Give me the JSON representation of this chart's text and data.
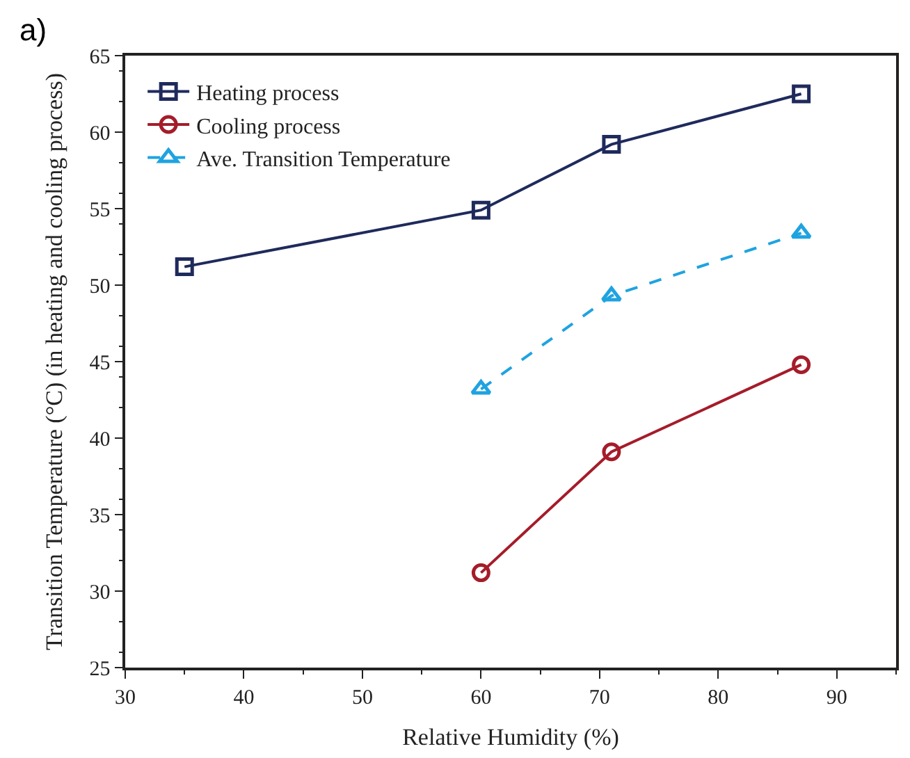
{
  "chart_data": {
    "type": "line",
    "xlabel": "Relative Humidity (%)",
    "ylabel": "Transition Temperature (°C) (in heating and cooling process)",
    "annotations": [
      "a)"
    ],
    "xlim": [
      30,
      95
    ],
    "xticks": [
      30,
      40,
      50,
      60,
      70,
      80,
      90
    ],
    "ylim": [
      25,
      65
    ],
    "yticks": [
      25,
      30,
      35,
      40,
      45,
      50,
      55,
      60,
      65
    ],
    "grid": false,
    "legend": "top left",
    "series": [
      {
        "name": "Heating process",
        "color": "#1f2a5c",
        "x": [
          35,
          60,
          71,
          87
        ],
        "values": [
          51.2,
          54.9,
          59.2,
          62.5
        ],
        "marker": "square",
        "line_style": "solid"
      },
      {
        "name": "Cooling process",
        "color": "#a51c2a",
        "x": [
          60,
          71,
          87
        ],
        "values": [
          31.2,
          39.1,
          44.8
        ],
        "marker": "circle",
        "line_style": "solid"
      },
      {
        "name": "Ave. Transition Temperature",
        "color": "#1fa3e0",
        "x": [
          60,
          71,
          87
        ],
        "values": [
          43.2,
          49.3,
          53.4
        ],
        "marker": "triangle",
        "line_style": "dashed"
      }
    ]
  }
}
